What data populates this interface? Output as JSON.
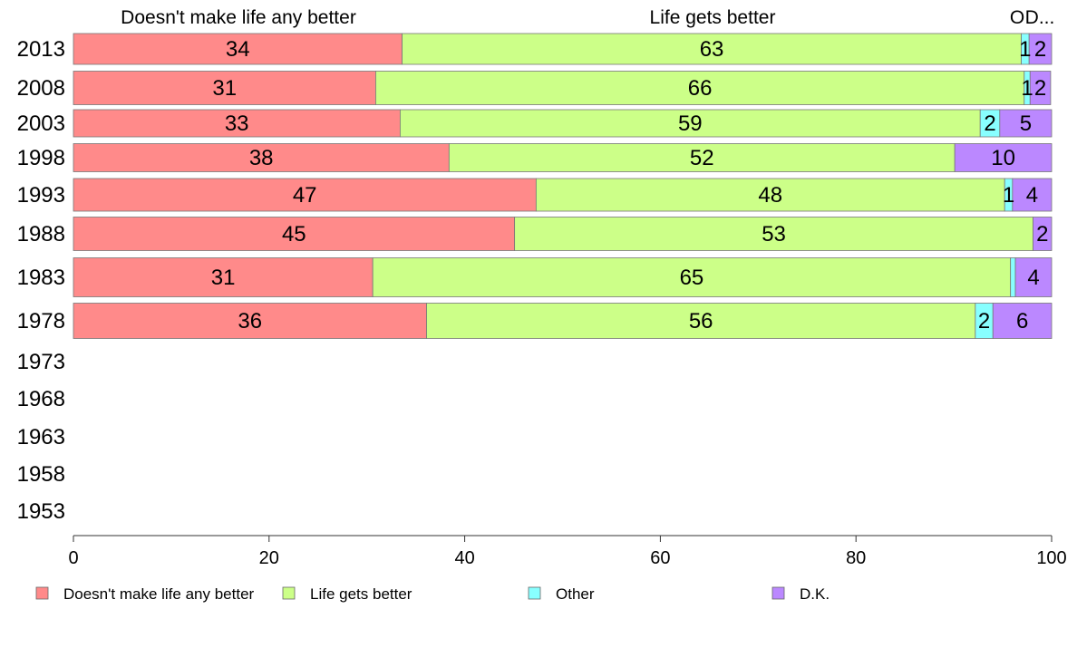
{
  "chart_data": {
    "type": "bar",
    "orientation": "horizontal",
    "stacked": true,
    "categories": [
      "2013",
      "2008",
      "2003",
      "1998",
      "1993",
      "1988",
      "1983",
      "1978",
      "1973",
      "1968",
      "1963",
      "1958",
      "1953"
    ],
    "series": [
      {
        "name": "Doesn't make life any better",
        "color": "#ff8a8a",
        "values": [
          33.6,
          30.9,
          33.4,
          38.4,
          47.3,
          45.1,
          30.6,
          36.1,
          null,
          null,
          null,
          null,
          null
        ],
        "labels": [
          "34",
          "31",
          "33",
          "38",
          "47",
          "45",
          "31",
          "36",
          "",
          "",
          "",
          "",
          ""
        ]
      },
      {
        "name": "Life gets better",
        "color": "#ccff88",
        "values": [
          63.3,
          66.3,
          59.3,
          51.7,
          47.9,
          53.0,
          65.2,
          56.1,
          null,
          null,
          null,
          null,
          null
        ],
        "labels": [
          "63",
          "66",
          "59",
          "52",
          "48",
          "53",
          "65",
          "56",
          "",
          "",
          "",
          "",
          ""
        ]
      },
      {
        "name": "Other",
        "color": "#88ffff",
        "values": [
          0.8,
          0.6,
          2.0,
          0.0,
          0.8,
          0.0,
          0.5,
          1.8,
          null,
          null,
          null,
          null,
          null
        ],
        "labels": [
          "1",
          "1",
          "2",
          "",
          "1",
          "",
          "",
          "2",
          "",
          "",
          "",
          "",
          ""
        ]
      },
      {
        "name": "D.K.",
        "color": "#bb88ff",
        "values": [
          2.3,
          2.1,
          5.3,
          9.9,
          4.0,
          1.9,
          3.7,
          6.0,
          null,
          null,
          null,
          null,
          null
        ],
        "labels": [
          "2",
          "2",
          "5",
          "10",
          "4",
          "2",
          "4",
          "6",
          "",
          "",
          "",
          "",
          ""
        ]
      }
    ],
    "top_labels": [
      "Doesn't make life any better",
      "Life gets better",
      "O",
      "D..."
    ],
    "xlim": [
      0,
      100
    ],
    "xticks": [
      "0",
      "20",
      "40",
      "60",
      "80",
      "100"
    ],
    "grid": false,
    "legend_position": "bottom"
  }
}
